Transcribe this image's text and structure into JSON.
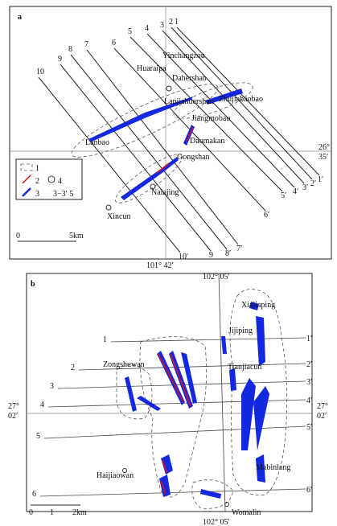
{
  "panel_a": {
    "label": "a",
    "places": [
      "Yinchangzou",
      "Huaraipa",
      "Dahershan",
      "Lanjiahuershan",
      "Zhujiabaobao",
      "Jiangmobao",
      "Daomakan",
      "Lanbao",
      "Gongshan",
      "Nalajing",
      "Xincun"
    ],
    "profiles_start": [
      "10",
      "9",
      "8",
      "7",
      "6",
      "5",
      "4",
      "3",
      "2",
      "1"
    ],
    "profiles_end": [
      "10′",
      "9",
      "8′",
      "7′",
      "6′",
      "5′",
      "4′",
      "3′",
      "2′",
      "1′"
    ],
    "coords": [
      "26°",
      "35′",
      "101° 42′"
    ],
    "legend": [
      "1",
      "2",
      "3",
      "4",
      "3−3′ 5"
    ],
    "scale": [
      "0",
      "5km"
    ]
  },
  "panel_b": {
    "label": "b",
    "places": [
      "Xiajiaping",
      "Jijiping",
      "Zongshuwan",
      "Tianjiacun",
      "Haijiaowan",
      "Mabinlang",
      "Womalin"
    ],
    "profiles_start": [
      "1",
      "2",
      "3",
      "4",
      "5",
      "6"
    ],
    "profiles_end": [
      "1′",
      "2′",
      "3′",
      "4′",
      "5′",
      "6′"
    ],
    "coords": [
      "102° 05′",
      "27°",
      "02′",
      "27°",
      "02′",
      "102° 05′"
    ],
    "scale": [
      "0",
      "1",
      "2km"
    ]
  }
}
